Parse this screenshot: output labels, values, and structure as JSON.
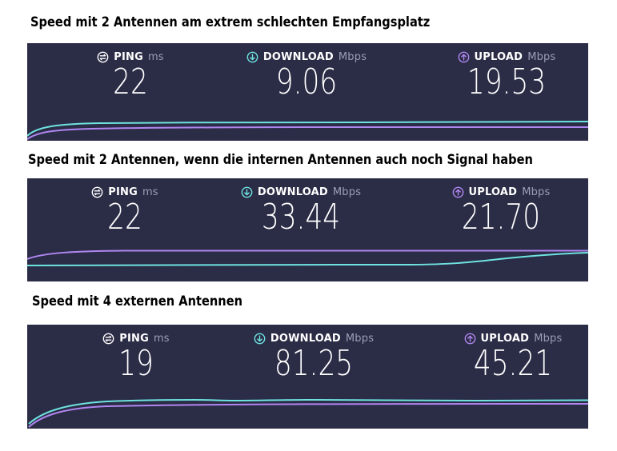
{
  "captions": [
    "Speed mit 2 Antennen am extrem schlechten Empfangsplatz",
    "Speed mit 2 Antennen, wenn die internen Antennen auch noch Signal haben",
    "Speed mit 4 externen Antennen"
  ],
  "labels": {
    "ping": "PING",
    "ping_unit": "ms",
    "download": "DOWNLOAD",
    "download_unit": "Mbps",
    "upload": "UPLOAD",
    "upload_unit": "Mbps"
  },
  "icons": {
    "ping": "ping-gauge-icon",
    "download": "download-arrow-icon",
    "upload": "upload-arrow-icon"
  },
  "colors": {
    "panel_bg": "#2b2c46",
    "download_accent": "#6ee3e0",
    "upload_accent": "#b086f0",
    "unit_text": "#9c9db5"
  },
  "results": [
    {
      "ping": "22",
      "download": "9.06",
      "upload": "19.53"
    },
    {
      "ping": "22",
      "download": "33.44",
      "upload": "21.70"
    },
    {
      "ping": "19",
      "download": "81.25",
      "upload": "45.21"
    }
  ]
}
